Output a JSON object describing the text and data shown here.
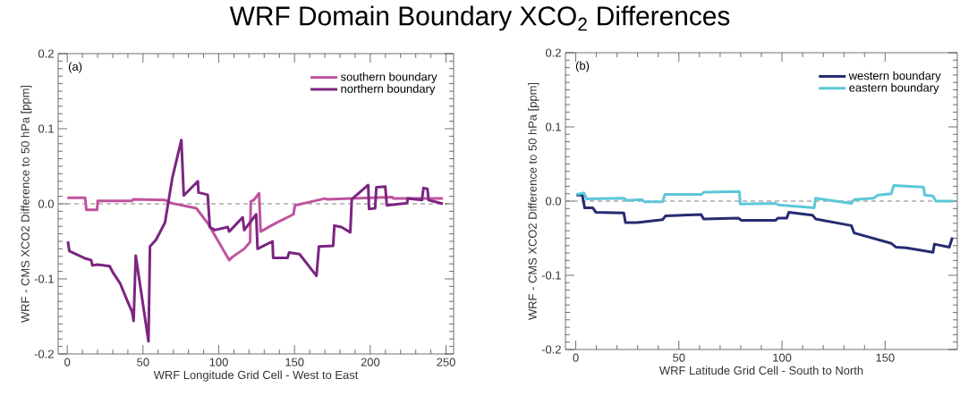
{
  "chart_data": [
    {
      "type": "line",
      "title": "WRF Domain Boundary XCO$_{2}$ Differences",
      "xlabel": "WRF Longitude Grid Cell - West to East",
      "ylabel": "WRF - CMS XCO2 Difference to 50 hPa [ppm]",
      "xlim": [
        -6,
        255
      ],
      "ylim": [
        -0.2,
        0.2
      ],
      "xticks": [
        0,
        50,
        100,
        150,
        200,
        250
      ],
      "yticks": [
        -0.2,
        -0.1,
        {
          "value": 0,
          "label": "0.0"
        },
        0.1,
        0.2
      ],
      "legend": "top right",
      "grid": false,
      "annotations": [
        "(a)"
      ],
      "ref_lines": [
        {
          "axis": "y",
          "value": 0,
          "color": "#808080",
          "line_style": "dashed"
        }
      ],
      "series": [
        {
          "name": "southern boundary",
          "color": "#c0539e",
          "x": [
            0,
            11.8,
            12.6,
            19.7,
            20.1,
            42.8,
            43.4,
            64.5,
            68.4,
            85.2,
            93.1,
            106.9,
            108.9,
            116.8,
            120.7,
            121.1,
            123.1,
            126.6,
            127.6,
            136.5,
            149.3,
            150.3,
            170,
            171.6,
            187.8,
            214.4,
            215.4,
            247.9
          ],
          "values": [
            0.008,
            0.008,
            -0.008,
            -0.008,
            0.004,
            0.004,
            0.006,
            0.005,
            0.001,
            -0.006,
            -0.027,
            -0.075,
            -0.071,
            -0.06,
            -0.051,
            0.003,
            0.005,
            0.014,
            -0.037,
            -0.027,
            -0.014,
            -0.002,
            0.007,
            0.006,
            0.007,
            0.009,
            0.007,
            0.007
          ]
        },
        {
          "name": "northern boundary",
          "color": "#7b2580",
          "x": [
            0.4,
            1.4,
            12.2,
            15.8,
            16.6,
            20.1,
            28,
            30,
            34.9,
            39.8,
            42.8,
            43.8,
            45.2,
            53.6,
            54.6,
            58.6,
            64.5,
            69.4,
            75.3,
            76.9,
            86.2,
            86.6,
            92.7,
            94.1,
            97.4,
            105.9,
            106.9,
            115.8,
            116.8,
            124.7,
            125.6,
            135.5,
            135.9,
            145.4,
            146.4,
            153.3,
            164.5,
            166.1,
            175.5,
            176.3,
            180.9,
            186.8,
            187.8,
            198.6,
            199.2,
            203.2,
            204,
            209.9,
            210.9,
            224.3,
            224.7,
            234.1,
            235.1,
            237.7,
            238.5,
            247.9
          ],
          "values": [
            -0.05,
            -0.063,
            -0.073,
            -0.075,
            -0.082,
            -0.081,
            -0.083,
            -0.091,
            -0.106,
            -0.13,
            -0.144,
            -0.156,
            -0.069,
            -0.183,
            -0.057,
            -0.048,
            -0.025,
            0.035,
            0.085,
            0.011,
            0.03,
            0.015,
            0.012,
            -0.031,
            -0.035,
            -0.031,
            -0.037,
            -0.018,
            -0.035,
            -0.014,
            -0.06,
            -0.05,
            -0.072,
            -0.072,
            -0.065,
            -0.067,
            -0.096,
            -0.057,
            -0.056,
            -0.029,
            -0.031,
            -0.038,
            0.006,
            0.025,
            -0.007,
            -0.006,
            0.022,
            0.023,
            -0.002,
            0.001,
            0.007,
            0.005,
            0.021,
            0.02,
            0.005,
            0
          ]
        }
      ]
    },
    {
      "type": "line",
      "xlabel": "WRF Latitude Grid Cell - South to North",
      "ylabel": "WRF - CMS XCO2 Difference to 50 hPa [ppm]",
      "xlim": [
        -5,
        185
      ],
      "ylim": [
        -0.2,
        0.2
      ],
      "xticks": [
        0,
        50,
        100,
        150
      ],
      "yticks": [
        -0.2,
        -0.1,
        {
          "value": 0,
          "label": "0.0"
        },
        0.1,
        0.2
      ],
      "legend": "top right",
      "grid": false,
      "annotations": [
        "(b)"
      ],
      "ref_lines": [
        {
          "axis": "y",
          "value": 0,
          "color": "#808080",
          "line_style": "dashed"
        }
      ],
      "series": [
        {
          "name": "western boundary",
          "color": "#262b72",
          "x": [
            0.3,
            3.2,
            4.3,
            8.2,
            9.7,
            23.3,
            24.1,
            29.8,
            42.1,
            43.5,
            60.8,
            62,
            78.8,
            80.3,
            96.8,
            98,
            102.3,
            103.3,
            114.8,
            116.3,
            133.6,
            135,
            153,
            155.2,
            160.2,
            173.2,
            173.9,
            181.1,
            182.6
          ],
          "values": [
            0.008,
            0.008,
            -0.009,
            -0.009,
            -0.015,
            -0.016,
            -0.029,
            -0.029,
            -0.025,
            -0.02,
            -0.018,
            -0.024,
            -0.023,
            -0.026,
            -0.026,
            -0.023,
            -0.023,
            -0.015,
            -0.019,
            -0.024,
            -0.033,
            -0.043,
            -0.057,
            -0.062,
            -0.063,
            -0.069,
            -0.058,
            -0.062,
            -0.049
          ]
        },
        {
          "name": "eastern boundary",
          "color": "#5bc8d9",
          "x": [
            0.3,
            3.9,
            5.3,
            23.3,
            24.8,
            32,
            33.4,
            42.1,
            43.2,
            60.8,
            62.2,
            79.3,
            79.8,
            96.8,
            98.3,
            115.6,
            116.3,
            133.6,
            135,
            144.4,
            146.5,
            153,
            154.2,
            168.6,
            169.2,
            173.2,
            174.6,
            183
          ],
          "values": [
            0.009,
            0.011,
            0.003,
            0.004,
            0.001,
            0.002,
            -0.001,
            -0.001,
            0.009,
            0.009,
            0.012,
            0.013,
            -0.004,
            -0.003,
            -0.005,
            -0.009,
            0.004,
            -0.003,
            0.002,
            0.004,
            0.008,
            0.01,
            0.021,
            0.019,
            0.008,
            0.007,
            0,
            0
          ]
        }
      ]
    }
  ]
}
